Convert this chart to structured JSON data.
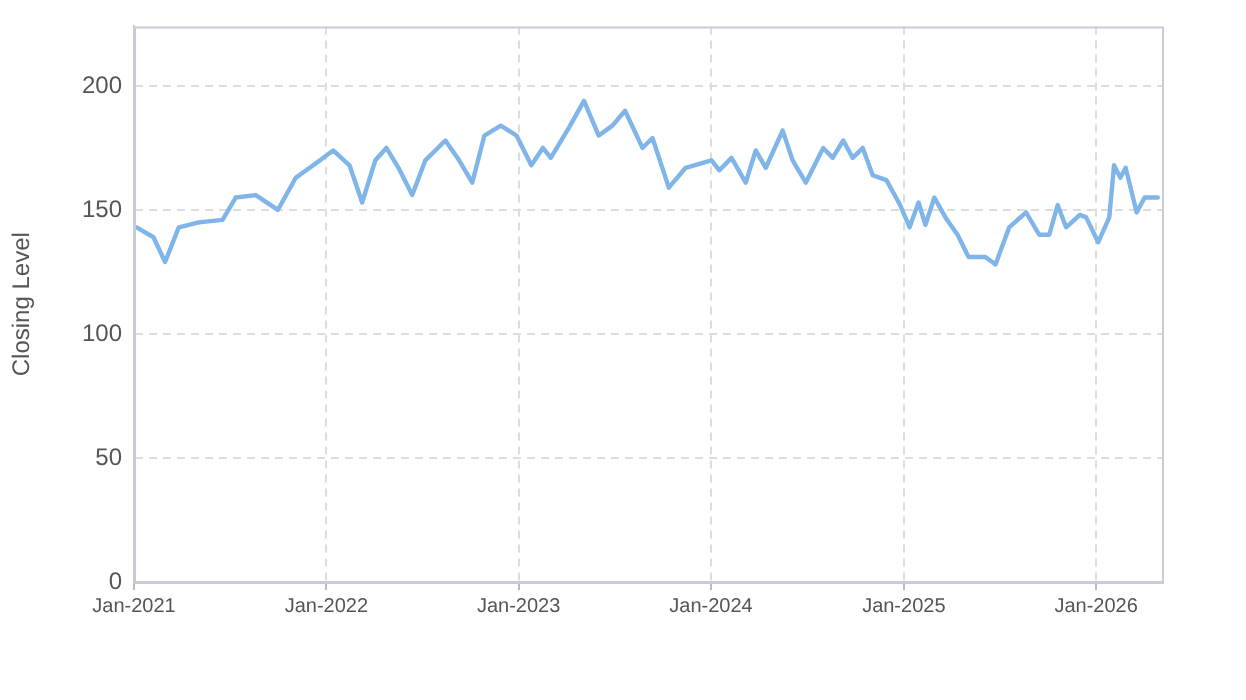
{
  "chart_data": {
    "type": "line",
    "ylabel": "Closing Level",
    "x": [
      "2021-01-06",
      "2021-02-07",
      "2021-03-01",
      "2021-03-27",
      "2021-05-04",
      "2021-06-18",
      "2021-07-13",
      "2021-08-20",
      "2021-10-01",
      "2021-11-04",
      "2021-12-20",
      "2022-01-14",
      "2022-02-14",
      "2022-03-10",
      "2022-04-04",
      "2022-04-25",
      "2022-05-18",
      "2022-06-13",
      "2022-07-08",
      "2022-08-15",
      "2022-09-10",
      "2022-10-05",
      "2022-10-28",
      "2022-11-28",
      "2022-12-28",
      "2023-01-25",
      "2023-02-16",
      "2023-03-03",
      "2023-04-06",
      "2023-05-05",
      "2023-06-02",
      "2023-06-28",
      "2023-07-22",
      "2023-08-24",
      "2023-09-12",
      "2023-10-13",
      "2023-11-14",
      "2024-01-02",
      "2024-01-17",
      "2024-02-09",
      "2024-03-07",
      "2024-03-26",
      "2024-04-14",
      "2024-05-16",
      "2024-06-04",
      "2024-06-29",
      "2024-08-01",
      "2024-08-19",
      "2024-09-08",
      "2024-09-26",
      "2024-10-15",
      "2024-11-03",
      "2024-11-29",
      "2024-12-25",
      "2025-01-12",
      "2025-01-29",
      "2025-02-11",
      "2025-02-28",
      "2025-03-21",
      "2025-04-13",
      "2025-05-04",
      "2025-06-05",
      "2025-06-24",
      "2025-07-20",
      "2025-08-21",
      "2025-09-15",
      "2025-10-04",
      "2025-10-20",
      "2025-11-05",
      "2025-12-01",
      "2025-12-13",
      "2026-01-05",
      "2026-01-26",
      "2026-02-04",
      "2026-02-16",
      "2026-02-26",
      "2026-03-19",
      "2026-04-03",
      "2026-04-28"
    ],
    "series": [
      {
        "color": "#7fb5e8",
        "values": [
          143,
          139,
          129,
          143,
          145,
          146,
          155,
          156,
          150,
          163,
          170,
          174,
          168,
          153,
          170,
          175,
          167,
          156,
          170,
          178,
          170,
          161,
          180,
          184,
          180,
          168,
          175,
          171,
          183,
          194,
          180,
          184,
          190,
          175,
          179,
          159,
          167,
          170,
          166,
          171,
          161,
          174,
          167,
          182,
          170,
          161,
          175,
          171,
          178,
          171,
          175,
          164,
          162,
          152,
          143,
          153,
          144,
          155,
          147,
          140,
          131,
          131,
          128,
          143,
          149,
          140,
          140,
          152,
          143,
          148,
          147,
          137,
          147,
          168,
          163,
          167,
          149,
          155,
          155
        ]
      }
    ],
    "xlim": [
      "2021-01-01",
      "2026-05-06"
    ],
    "xticks": [
      {
        "value": "2021-01",
        "label": "Jan-2021"
      },
      {
        "value": "2022-01",
        "label": "Jan-2022"
      },
      {
        "value": "2023-01",
        "label": "Jan-2023"
      },
      {
        "value": "2024-01",
        "label": "Jan-2024"
      },
      {
        "value": "2025-01",
        "label": "Jan-2025"
      },
      {
        "value": "2026-01",
        "label": "Jan-2026"
      }
    ],
    "ylim": [
      0,
      224
    ],
    "yticks": [
      0,
      50,
      100,
      150,
      200
    ],
    "grid": true,
    "legend": false,
    "marker": "none",
    "line_style": "solid"
  }
}
